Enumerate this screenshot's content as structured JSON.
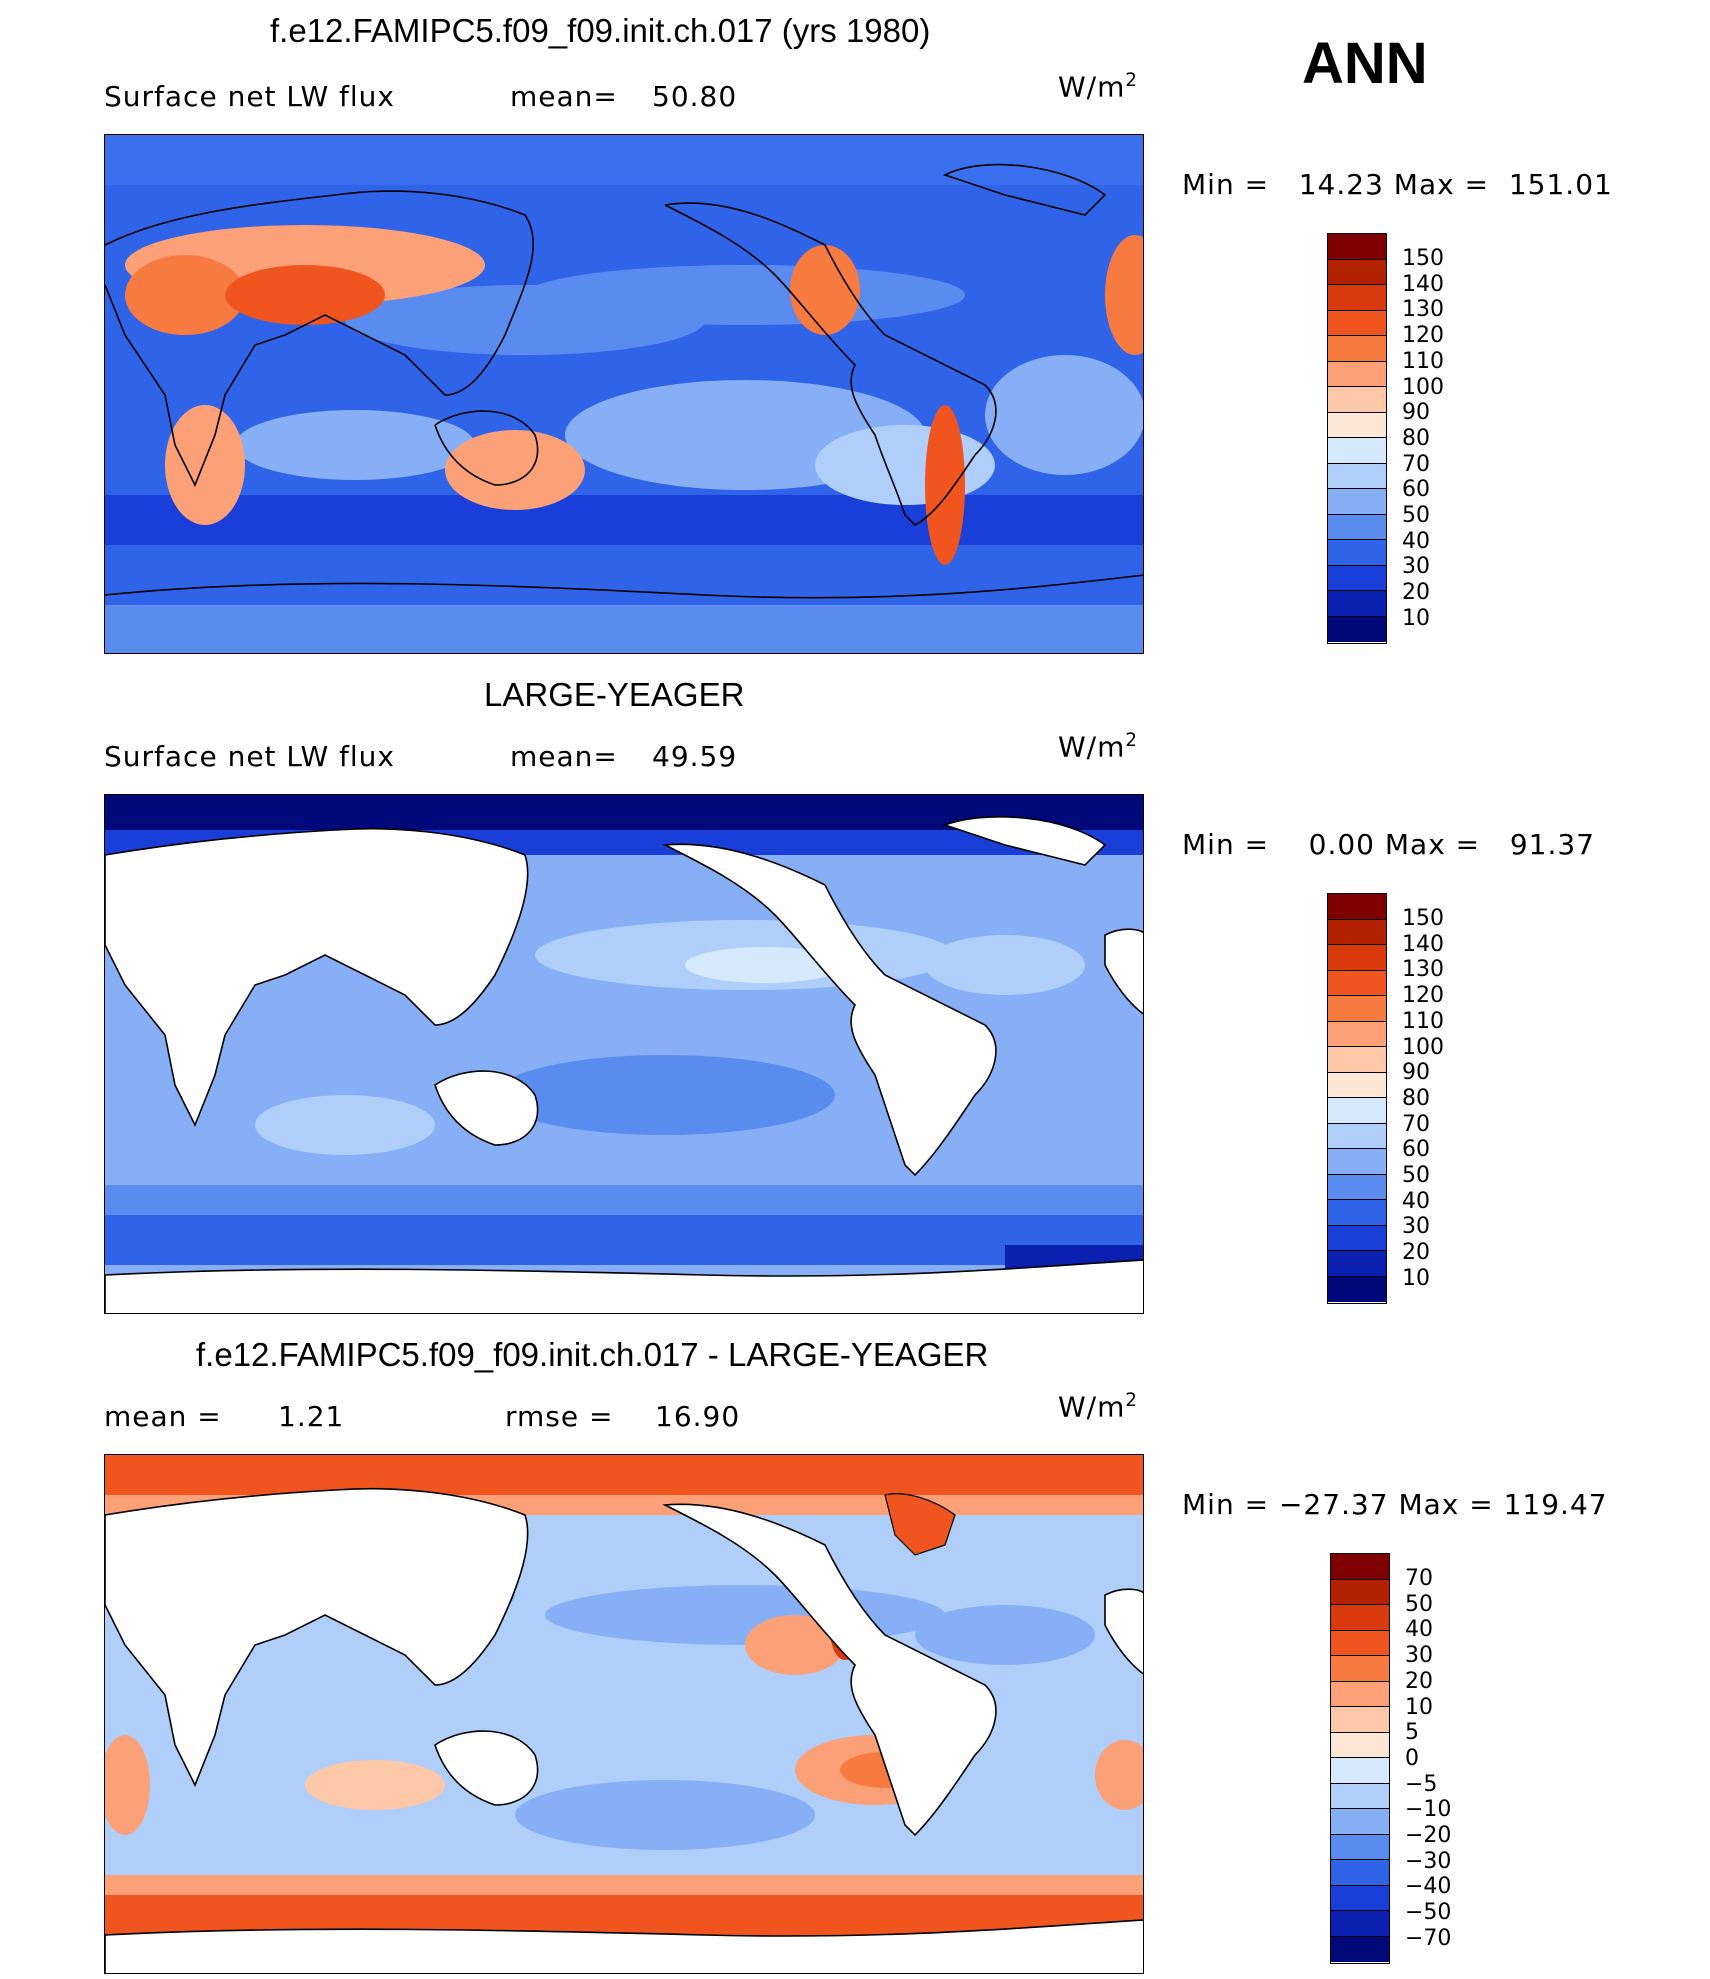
{
  "season": "ANN",
  "panels": [
    {
      "title": "f.e12.FAMIPC5.f09_f09.init.ch.017 (yrs 1980)",
      "left_label": "Surface net LW flux",
      "mid_label": "mean=",
      "mid_value": "50.80",
      "units": "W/m",
      "units_sup": "2",
      "range": "Min =   14.23 Max =  151.01",
      "colorbar_levels": [
        "150",
        "140",
        "130",
        "120",
        "110",
        "100",
        "90",
        "80",
        "70",
        "60",
        "50",
        "40",
        "30",
        "20",
        "10"
      ],
      "colorbar_colors": [
        "#7f0000",
        "#b22200",
        "#d83a0e",
        "#f05520",
        "#f77a40",
        "#fba077",
        "#fdc8a8",
        "#fde8d8",
        "#d6e8fc",
        "#b0cefa",
        "#87aff5",
        "#5a8cf0",
        "#2f64e8",
        "#1a3fd8",
        "#0b1fb0",
        "#00087a"
      ]
    },
    {
      "title": "LARGE-YEAGER",
      "left_label": "Surface net LW flux",
      "mid_label": "mean=",
      "mid_value": "49.59",
      "units": "W/m",
      "units_sup": "2",
      "range": "Min =    0.00 Max =   91.37",
      "colorbar_levels": [
        "150",
        "140",
        "130",
        "120",
        "110",
        "100",
        "90",
        "80",
        "70",
        "60",
        "50",
        "40",
        "30",
        "20",
        "10"
      ],
      "colorbar_colors": [
        "#7f0000",
        "#b22200",
        "#d83a0e",
        "#f05520",
        "#f77a40",
        "#fba077",
        "#fdc8a8",
        "#fde8d8",
        "#d6e8fc",
        "#b0cefa",
        "#87aff5",
        "#5a8cf0",
        "#2f64e8",
        "#1a3fd8",
        "#0b1fb0",
        "#00087a"
      ]
    },
    {
      "title": "f.e12.FAMIPC5.f09_f09.init.ch.017 - LARGE-YEAGER",
      "left_label": "mean =",
      "left_value": "1.21",
      "mid_label": "rmse =",
      "mid_value": "16.90",
      "units": "W/m",
      "units_sup": "2",
      "range": "Min = −27.37 Max = 119.47",
      "colorbar_levels": [
        "70",
        "50",
        "40",
        "30",
        "20",
        "10",
        "5",
        "0",
        "−5",
        "−10",
        "−20",
        "−30",
        "−40",
        "−50",
        "−70"
      ],
      "colorbar_colors": [
        "#7f0000",
        "#b22200",
        "#d83a0e",
        "#f05520",
        "#f77a40",
        "#fba077",
        "#fdc8a8",
        "#fde8d8",
        "#d6e8fc",
        "#b0cefa",
        "#87aff5",
        "#5a8cf0",
        "#2f64e8",
        "#1a3fd8",
        "#0b1fb0",
        "#00087a"
      ]
    }
  ]
}
